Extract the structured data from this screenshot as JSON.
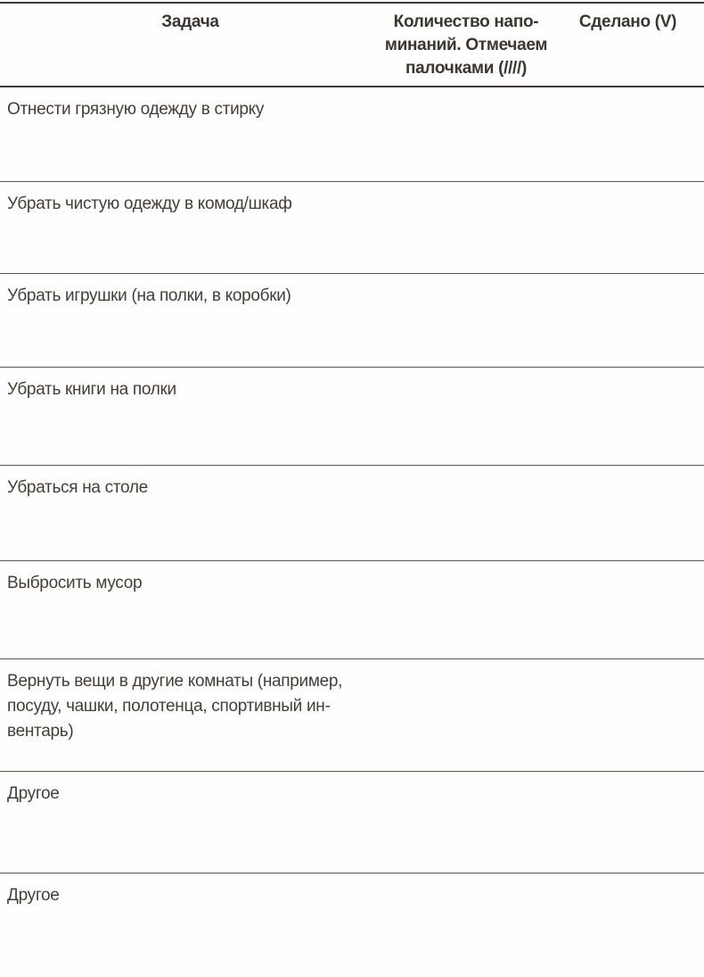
{
  "table": {
    "header": {
      "task": "Задача",
      "reminders": [
        "Количество напо-",
        "минаний. Отмечаем",
        "палочками (////)"
      ],
      "done": "Сделано (V)"
    },
    "rows": [
      {
        "task": "Отнести грязную одежду в стирку",
        "reminders": "",
        "done": ""
      },
      {
        "task": "Убрать чистую одежду в комод/шкаф",
        "reminders": "",
        "done": ""
      },
      {
        "task": "Убрать игрушки (на полки, в коробки)",
        "reminders": "",
        "done": ""
      },
      {
        "task": "Убрать книги на полки",
        "reminders": "",
        "done": ""
      },
      {
        "task": "Убраться на столе",
        "reminders": "",
        "done": ""
      },
      {
        "task": "Выбросить мусор",
        "reminders": "",
        "done": ""
      },
      {
        "task": [
          "Вернуть вещи в другие комнаты (например,",
          "посуду, чашки, полотенца, спортивный ин-",
          "вентарь)"
        ],
        "reminders": "",
        "done": ""
      },
      {
        "task": "Другое",
        "reminders": "",
        "done": ""
      },
      {
        "task": "Другое",
        "reminders": "",
        "done": ""
      }
    ]
  },
  "colors": {
    "text": "#453e37",
    "rule_strong": "#3f3933",
    "rule_light": "#5f5750",
    "background": "#fefefe"
  }
}
